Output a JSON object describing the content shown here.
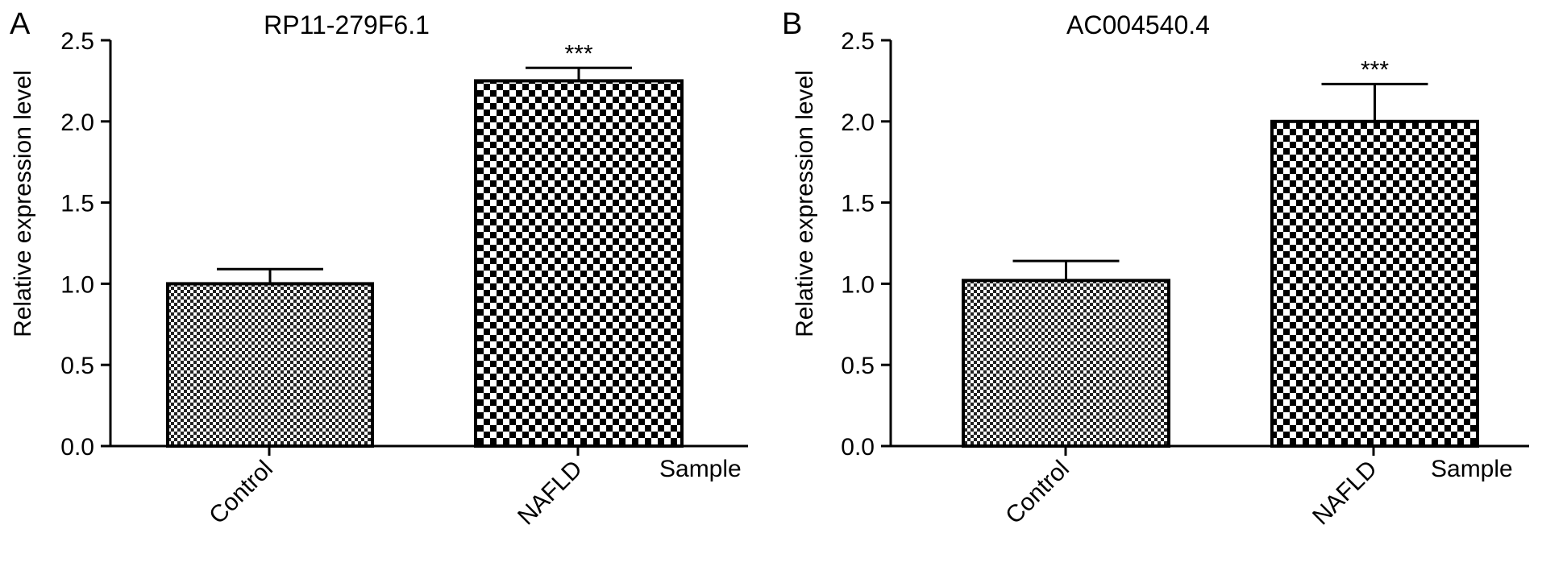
{
  "chart_data": [
    {
      "type": "bar",
      "panel": "A",
      "title": "RP11-279F6.1",
      "categories": [
        "Control",
        "NAFLD"
      ],
      "values": [
        1.0,
        2.25
      ],
      "errors": [
        0.09,
        0.08
      ],
      "annotations": [
        "",
        "***"
      ],
      "xlabel": "Sample",
      "ylabel": "Relative expression level",
      "ylim": [
        0,
        2.5
      ],
      "yticks": [
        "0.0",
        "0.5",
        "1.0",
        "1.5",
        "2.0",
        "2.5"
      ],
      "grid": false,
      "legend": "none"
    },
    {
      "type": "bar",
      "panel": "B",
      "title": "AC004540.4",
      "categories": [
        "Control",
        "NAFLD"
      ],
      "values": [
        1.02,
        2.0
      ],
      "errors": [
        0.12,
        0.23
      ],
      "annotations": [
        "",
        "***"
      ],
      "xlabel": "Sample",
      "ylabel": "Relative expression level",
      "ylim": [
        0,
        2.5
      ],
      "yticks": [
        "0.0",
        "0.5",
        "1.0",
        "1.5",
        "2.0",
        "2.5"
      ],
      "grid": false,
      "legend": "none"
    }
  ]
}
